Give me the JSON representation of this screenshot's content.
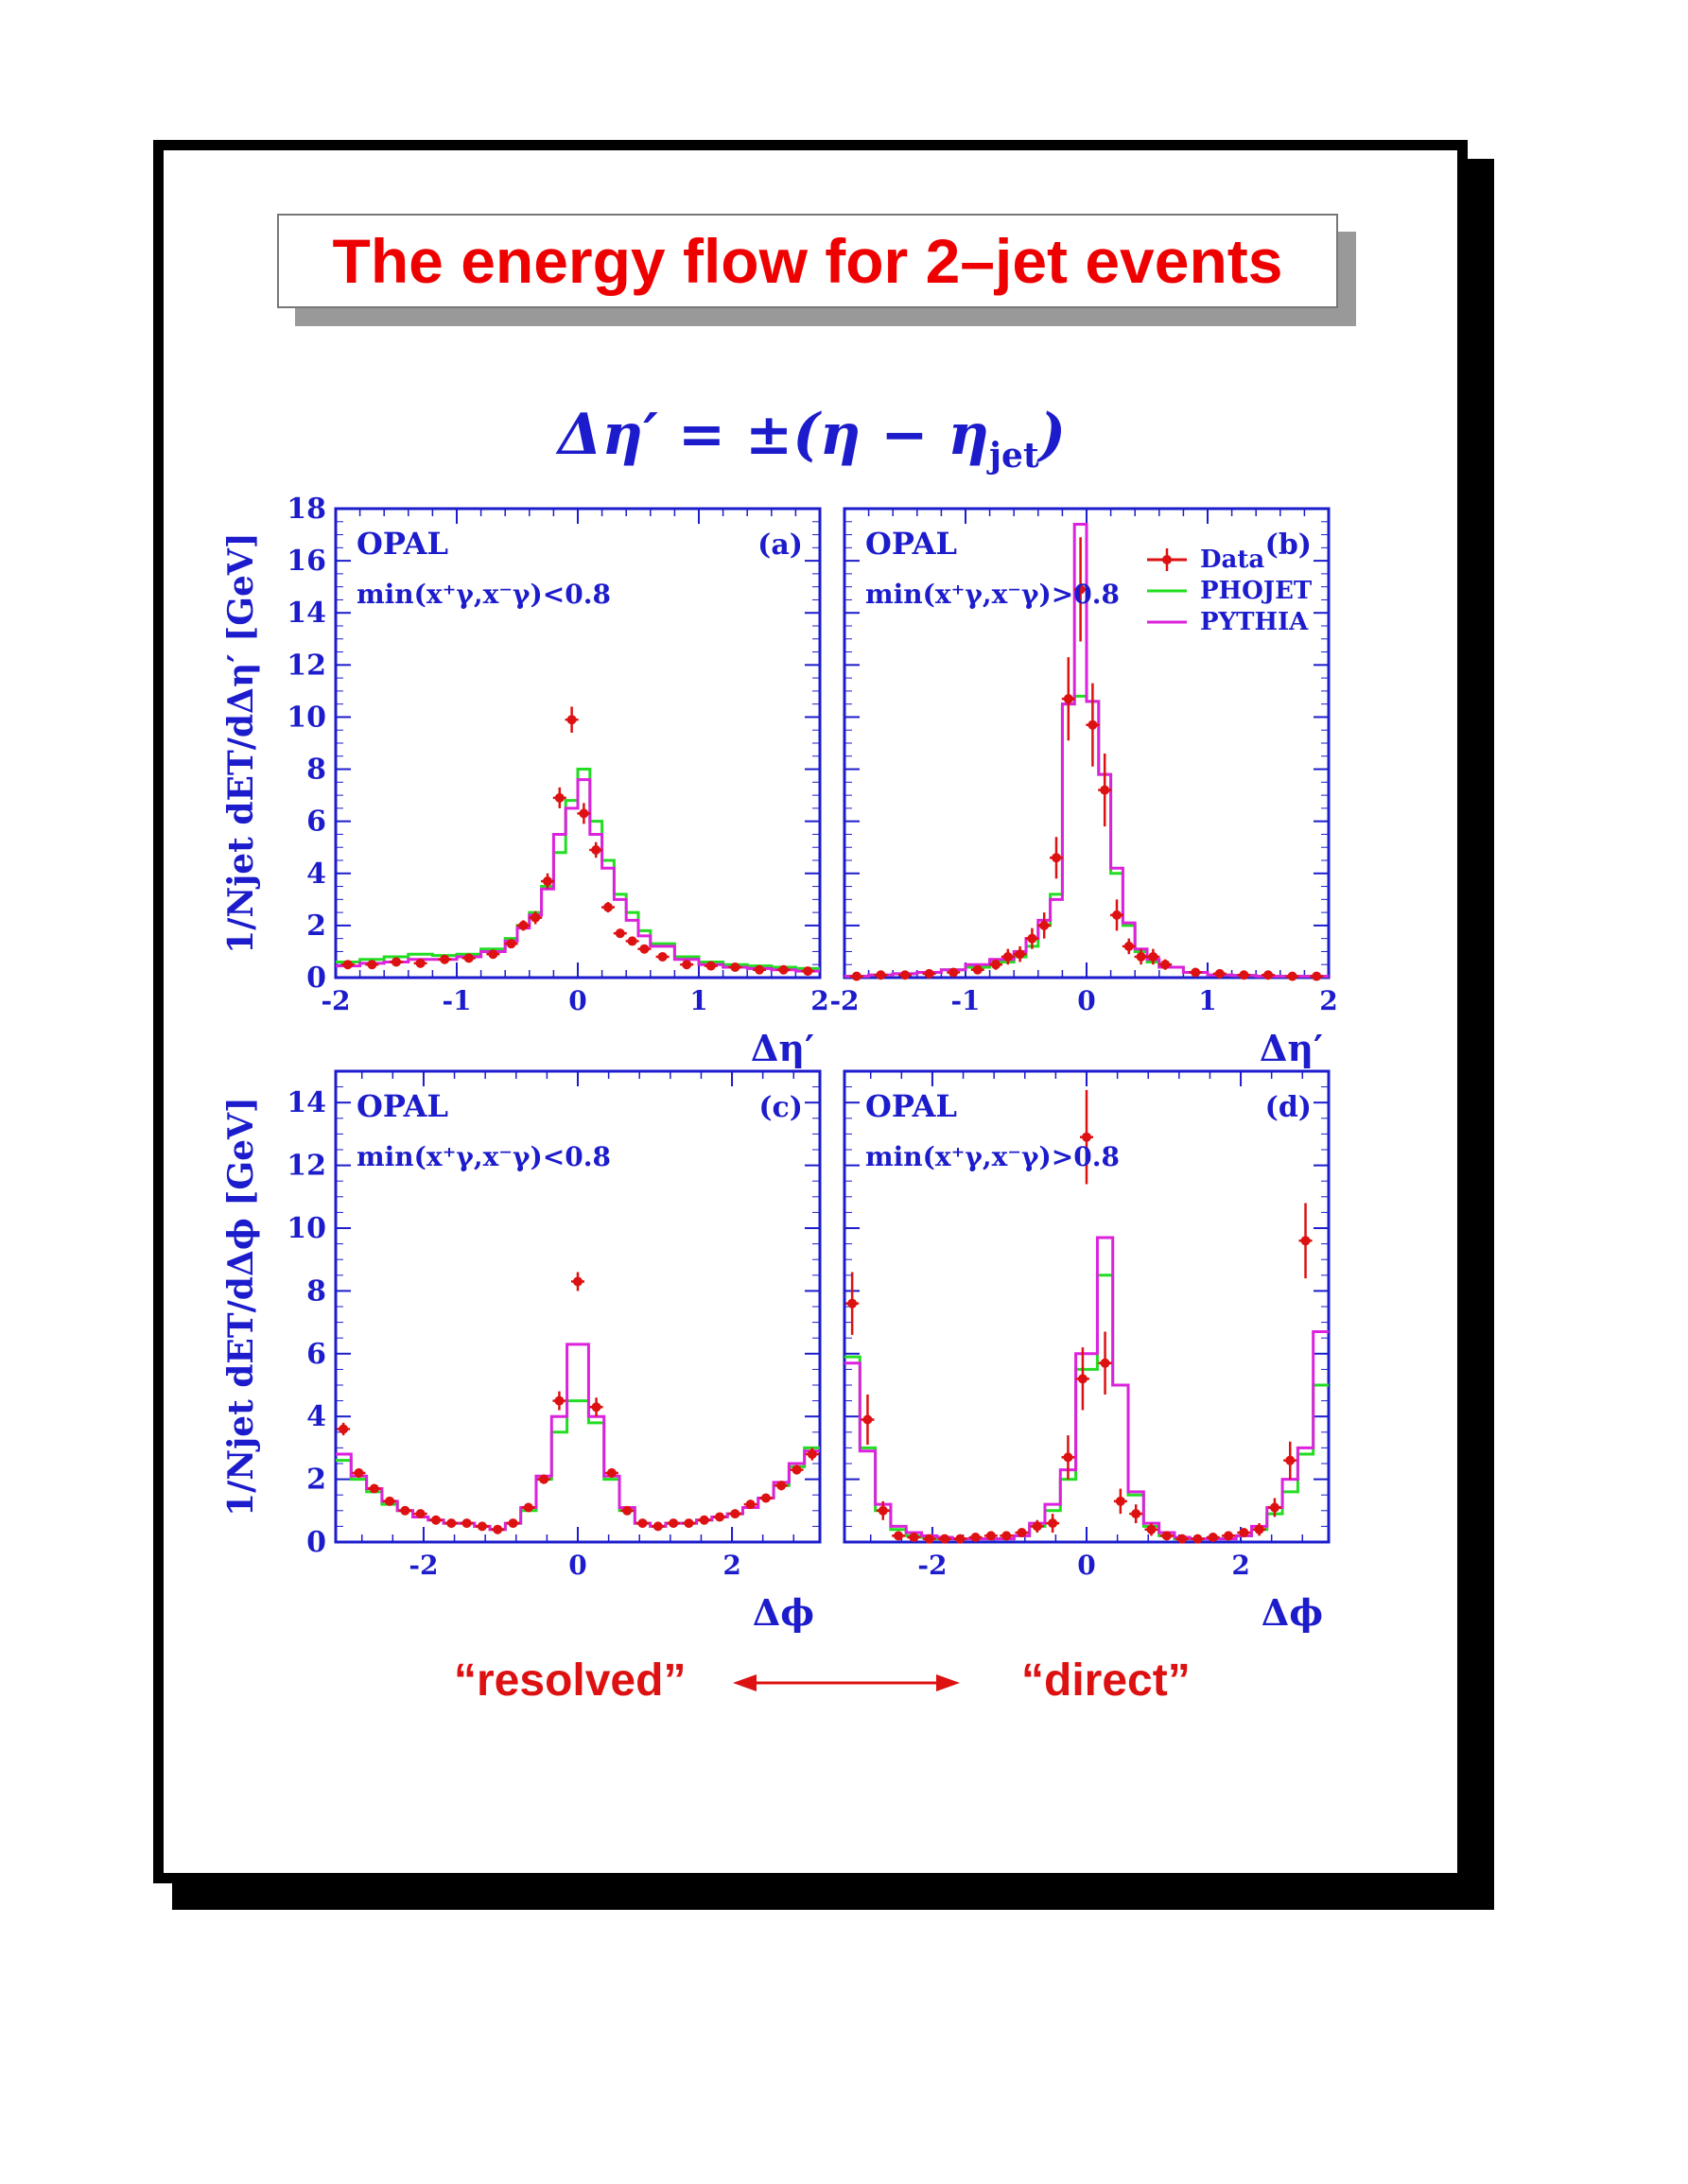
{
  "title": "The energy flow for 2–jet events",
  "formula": {
    "main": "Δη′ = ±(η − η",
    "sub": "jet",
    "close": ")"
  },
  "bottom_labels": {
    "left": "“resolved”",
    "right": "“direct”"
  },
  "colors": {
    "data": "#dd1111",
    "phojet": "#22dd22",
    "pythia": "#dd22dd",
    "axis": "#1c1ccc",
    "title": "#ee0000"
  },
  "chart_data": [
    {
      "id": "a",
      "type": "line",
      "panel_label": "(a)",
      "experiment": "OPAL",
      "cut": "min(x⁺γ,x⁻γ)<0.8",
      "xlabel": "Δη′",
      "ylabel": "1/Njet dET/dΔη′ [GeV]",
      "xlim": [
        -2,
        2
      ],
      "ylim": [
        0,
        18
      ],
      "xticks": [
        -2,
        -1,
        0,
        1,
        2
      ],
      "yticks": [
        0,
        2,
        4,
        6,
        8,
        10,
        12,
        14,
        16,
        18
      ],
      "bin_edges": [
        -2.0,
        -1.8,
        -1.6,
        -1.4,
        -1.2,
        -1.0,
        -0.8,
        -0.6,
        -0.5,
        -0.4,
        -0.3,
        -0.2,
        -0.1,
        0.0,
        0.1,
        0.2,
        0.3,
        0.4,
        0.5,
        0.6,
        0.8,
        1.0,
        1.2,
        1.4,
        1.6,
        1.8,
        2.0
      ],
      "series": [
        {
          "name": "PHOJET",
          "style": "hist",
          "values": [
            0.6,
            0.7,
            0.8,
            0.9,
            0.85,
            0.9,
            1.1,
            1.5,
            2.0,
            2.5,
            3.5,
            4.8,
            6.8,
            8.0,
            6.0,
            4.5,
            3.2,
            2.5,
            1.8,
            1.3,
            0.8,
            0.6,
            0.5,
            0.45,
            0.4,
            0.35
          ]
        },
        {
          "name": "PYTHIA",
          "style": "hist",
          "values": [
            0.45,
            0.55,
            0.6,
            0.7,
            0.7,
            0.8,
            1.0,
            1.4,
            1.9,
            2.4,
            3.4,
            5.5,
            6.5,
            7.6,
            5.5,
            4.2,
            3.0,
            2.2,
            1.6,
            1.2,
            0.7,
            0.5,
            0.4,
            0.35,
            0.3,
            0.25
          ]
        },
        {
          "name": "Data",
          "style": "points",
          "x": [
            -1.9,
            -1.7,
            -1.5,
            -1.3,
            -1.1,
            -0.9,
            -0.7,
            -0.55,
            -0.45,
            -0.35,
            -0.25,
            -0.15,
            -0.05,
            0.05,
            0.15,
            0.25,
            0.35,
            0.45,
            0.55,
            0.7,
            0.9,
            1.1,
            1.3,
            1.5,
            1.7,
            1.9
          ],
          "y": [
            0.5,
            0.5,
            0.6,
            0.55,
            0.7,
            0.75,
            0.9,
            1.3,
            2.0,
            2.3,
            3.7,
            6.9,
            9.9,
            6.3,
            4.9,
            2.7,
            1.7,
            1.4,
            1.1,
            0.8,
            0.5,
            0.45,
            0.4,
            0.3,
            0.3,
            0.25
          ],
          "err": [
            0.1,
            0.1,
            0.1,
            0.1,
            0.1,
            0.1,
            0.1,
            0.15,
            0.2,
            0.25,
            0.3,
            0.4,
            0.5,
            0.4,
            0.3,
            0.2,
            0.15,
            0.15,
            0.1,
            0.1,
            0.1,
            0.1,
            0.1,
            0.1,
            0.1,
            0.1
          ]
        }
      ]
    },
    {
      "id": "b",
      "type": "line",
      "panel_label": "(b)",
      "experiment": "OPAL",
      "cut": "min(x⁺γ,x⁻γ)>0.8",
      "xlabel": "Δη′",
      "ylabel": "",
      "xlim": [
        -2,
        2
      ],
      "ylim": [
        0,
        18
      ],
      "xticks": [
        -2,
        -1,
        0,
        1,
        2
      ],
      "legend": [
        "Data",
        "PHOJET",
        "PYTHIA"
      ],
      "bin_edges": [
        -2.0,
        -1.8,
        -1.6,
        -1.4,
        -1.2,
        -1.0,
        -0.8,
        -0.6,
        -0.5,
        -0.4,
        -0.3,
        -0.2,
        -0.1,
        0.0,
        0.1,
        0.2,
        0.3,
        0.4,
        0.5,
        0.6,
        0.8,
        1.0,
        1.2,
        1.4,
        1.6,
        1.8,
        2.0
      ],
      "series": [
        {
          "name": "PHOJET",
          "style": "hist",
          "values": [
            0.05,
            0.1,
            0.15,
            0.2,
            0.3,
            0.4,
            0.6,
            0.8,
            1.2,
            2.0,
            3.2,
            10.5,
            10.8,
            10.6,
            7.8,
            4.0,
            2.0,
            1.0,
            0.6,
            0.4,
            0.2,
            0.1,
            0.08,
            0.05,
            0.05,
            0.05
          ]
        },
        {
          "name": "PYTHIA",
          "style": "hist",
          "values": [
            0.05,
            0.1,
            0.15,
            0.2,
            0.3,
            0.5,
            0.7,
            1.0,
            1.5,
            2.2,
            3.0,
            10.5,
            17.4,
            10.6,
            7.8,
            4.2,
            2.1,
            1.1,
            0.7,
            0.4,
            0.2,
            0.1,
            0.08,
            0.05,
            0.05,
            0.05
          ]
        },
        {
          "name": "Data",
          "style": "points",
          "x": [
            -1.9,
            -1.7,
            -1.5,
            -1.3,
            -1.1,
            -0.9,
            -0.75,
            -0.65,
            -0.55,
            -0.45,
            -0.35,
            -0.25,
            -0.15,
            -0.05,
            0.05,
            0.15,
            0.25,
            0.35,
            0.45,
            0.55,
            0.65,
            0.9,
            1.1,
            1.3,
            1.5,
            1.7,
            1.9
          ],
          "y": [
            0.05,
            0.1,
            0.1,
            0.15,
            0.2,
            0.3,
            0.5,
            0.8,
            0.9,
            1.5,
            2.0,
            4.6,
            10.7,
            14.9,
            9.7,
            7.2,
            2.4,
            1.2,
            0.8,
            0.8,
            0.5,
            0.2,
            0.15,
            0.1,
            0.1,
            0.05,
            0.05
          ],
          "err": [
            0.05,
            0.05,
            0.05,
            0.05,
            0.1,
            0.1,
            0.2,
            0.3,
            0.3,
            0.4,
            0.5,
            0.8,
            1.6,
            2.0,
            1.6,
            1.4,
            0.6,
            0.3,
            0.3,
            0.3,
            0.2,
            0.1,
            0.1,
            0.05,
            0.05,
            0.05,
            0.05
          ]
        }
      ]
    },
    {
      "id": "c",
      "type": "line",
      "panel_label": "(c)",
      "experiment": "OPAL",
      "cut": "min(x⁺γ,x⁻γ)<0.8",
      "xlabel": "Δϕ",
      "ylabel": "1/Njet dET/dΔϕ [GeV]",
      "xlim": [
        -3.14,
        3.14
      ],
      "ylim": [
        0,
        15
      ],
      "xticks": [
        -2,
        0,
        2
      ],
      "yticks": [
        0,
        2,
        4,
        6,
        8,
        10,
        12,
        14
      ],
      "bin_edges": [
        -3.14,
        -2.94,
        -2.74,
        -2.54,
        -2.34,
        -2.14,
        -1.94,
        -1.74,
        -1.54,
        -1.34,
        -1.14,
        -0.94,
        -0.74,
        -0.54,
        -0.34,
        -0.14,
        0.14,
        0.34,
        0.54,
        0.74,
        0.94,
        1.14,
        1.34,
        1.54,
        1.74,
        1.94,
        2.14,
        2.34,
        2.54,
        2.74,
        2.94,
        3.14
      ],
      "series": [
        {
          "name": "PHOJET",
          "style": "hist",
          "values": [
            2.6,
            2.0,
            1.6,
            1.2,
            1.0,
            0.8,
            0.7,
            0.6,
            0.6,
            0.5,
            0.4,
            0.6,
            1.0,
            2.0,
            3.5,
            4.5,
            3.8,
            2.0,
            1.0,
            0.6,
            0.5,
            0.6,
            0.6,
            0.7,
            0.8,
            0.9,
            1.1,
            1.4,
            1.8,
            2.4,
            3.0
          ]
        },
        {
          "name": "PYTHIA",
          "style": "hist",
          "values": [
            2.8,
            2.1,
            1.7,
            1.3,
            1.0,
            0.8,
            0.7,
            0.6,
            0.6,
            0.5,
            0.4,
            0.6,
            1.1,
            2.1,
            4.0,
            6.3,
            4.0,
            2.1,
            1.1,
            0.6,
            0.5,
            0.6,
            0.6,
            0.7,
            0.8,
            0.9,
            1.1,
            1.4,
            1.9,
            2.5,
            2.9
          ]
        },
        {
          "name": "Data",
          "style": "points",
          "x": [
            -3.04,
            -2.84,
            -2.64,
            -2.44,
            -2.24,
            -2.04,
            -1.84,
            -1.64,
            -1.44,
            -1.24,
            -1.04,
            -0.84,
            -0.64,
            -0.44,
            -0.24,
            0.0,
            0.24,
            0.44,
            0.64,
            0.84,
            1.04,
            1.24,
            1.44,
            1.64,
            1.84,
            2.04,
            2.24,
            2.44,
            2.64,
            2.84,
            3.04
          ],
          "y": [
            3.6,
            2.2,
            1.7,
            1.3,
            1.0,
            0.9,
            0.7,
            0.6,
            0.6,
            0.5,
            0.4,
            0.6,
            1.1,
            2.0,
            4.5,
            8.3,
            4.3,
            2.2,
            1.0,
            0.6,
            0.5,
            0.6,
            0.6,
            0.7,
            0.8,
            0.9,
            1.2,
            1.4,
            1.8,
            2.3,
            2.8
          ],
          "err": [
            0.2,
            0.15,
            0.1,
            0.1,
            0.1,
            0.1,
            0.1,
            0.1,
            0.1,
            0.1,
            0.1,
            0.1,
            0.1,
            0.15,
            0.3,
            0.3,
            0.3,
            0.15,
            0.1,
            0.1,
            0.1,
            0.1,
            0.1,
            0.1,
            0.1,
            0.1,
            0.1,
            0.1,
            0.15,
            0.15,
            0.2
          ]
        }
      ]
    },
    {
      "id": "d",
      "type": "line",
      "panel_label": "(d)",
      "experiment": "OPAL",
      "cut": "min(x⁺γ,x⁻γ)>0.8",
      "xlabel": "Δϕ",
      "ylabel": "",
      "xlim": [
        -3.14,
        3.14
      ],
      "ylim": [
        0,
        15
      ],
      "xticks": [
        -2,
        0,
        2
      ],
      "bin_edges": [
        -3.14,
        -2.94,
        -2.74,
        -2.54,
        -2.34,
        -2.14,
        -1.94,
        -1.74,
        -1.54,
        -1.34,
        -1.14,
        -0.94,
        -0.74,
        -0.54,
        -0.34,
        -0.14,
        0.14,
        0.34,
        0.54,
        0.74,
        0.94,
        1.14,
        1.34,
        1.54,
        1.74,
        1.94,
        2.14,
        2.34,
        2.54,
        2.74,
        2.94,
        3.14
      ],
      "series": [
        {
          "name": "PHOJET",
          "style": "hist",
          "values": [
            5.9,
            3.0,
            1.0,
            0.4,
            0.2,
            0.15,
            0.1,
            0.1,
            0.1,
            0.1,
            0.1,
            0.2,
            0.5,
            1.0,
            2.0,
            5.5,
            8.5,
            5.0,
            1.5,
            0.5,
            0.2,
            0.1,
            0.1,
            0.1,
            0.1,
            0.2,
            0.4,
            0.9,
            1.6,
            2.8,
            5.0
          ]
        },
        {
          "name": "PYTHIA",
          "style": "hist",
          "values": [
            5.7,
            2.9,
            1.2,
            0.5,
            0.3,
            0.2,
            0.15,
            0.1,
            0.1,
            0.1,
            0.1,
            0.2,
            0.6,
            1.2,
            2.3,
            6.0,
            9.7,
            5.0,
            1.6,
            0.6,
            0.3,
            0.15,
            0.1,
            0.1,
            0.1,
            0.2,
            0.5,
            1.1,
            2.0,
            3.0,
            6.7
          ]
        },
        {
          "name": "Data",
          "style": "points",
          "x": [
            -3.04,
            -2.84,
            -2.64,
            -2.44,
            -2.24,
            -2.04,
            -1.84,
            -1.64,
            -1.44,
            -1.24,
            -1.04,
            -0.84,
            -0.64,
            -0.44,
            -0.24,
            -0.05,
            0.0,
            0.24,
            0.44,
            0.64,
            0.84,
            1.04,
            1.24,
            1.44,
            1.64,
            1.84,
            2.04,
            2.24,
            2.44,
            2.64,
            2.84,
            3.04
          ],
          "y": [
            7.6,
            3.9,
            1.0,
            0.2,
            0.15,
            0.1,
            0.1,
            0.1,
            0.15,
            0.2,
            0.2,
            0.3,
            0.5,
            0.6,
            2.7,
            5.2,
            12.9,
            5.7,
            1.3,
            0.9,
            0.4,
            0.2,
            0.1,
            0.1,
            0.15,
            0.2,
            0.3,
            0.4,
            1.1,
            2.6,
            9.6,
            0.0
          ],
          "err": [
            1.0,
            0.8,
            0.3,
            0.1,
            0.1,
            0.05,
            0.05,
            0.05,
            0.05,
            0.1,
            0.1,
            0.1,
            0.2,
            0.3,
            0.7,
            1.0,
            1.5,
            1.0,
            0.4,
            0.3,
            0.2,
            0.1,
            0.05,
            0.05,
            0.05,
            0.1,
            0.1,
            0.2,
            0.3,
            0.6,
            1.2,
            0.0
          ]
        }
      ]
    }
  ]
}
